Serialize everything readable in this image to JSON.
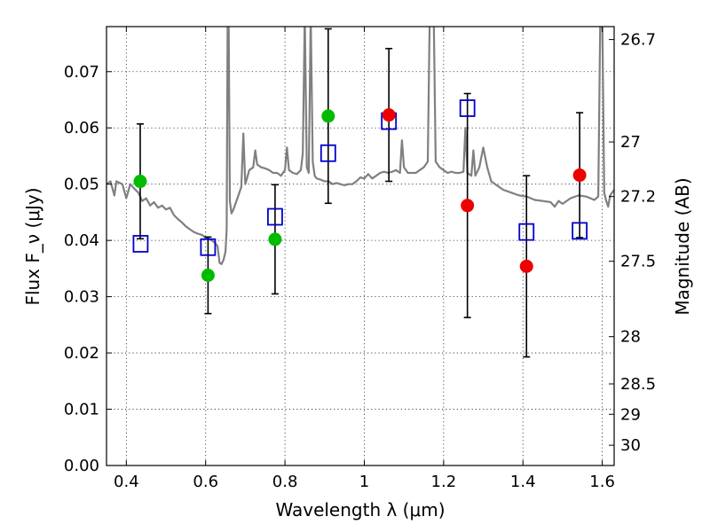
{
  "chart_data": {
    "type": "scatter",
    "xlabel": "Wavelength λ (μm)",
    "ylabel": "Flux F_ν (μJy)",
    "y2label": "Magnitude (AB)",
    "xlim": [
      0.35,
      1.63
    ],
    "ylim": [
      0.0,
      0.078
    ],
    "x_ticks": [
      0.4,
      0.6,
      0.8,
      1.0,
      1.2,
      1.4,
      1.6
    ],
    "x_tick_labels": [
      "0.4",
      "0.6",
      "0.8",
      "1",
      "1.2",
      "1.4",
      "1.6"
    ],
    "y_ticks": [
      0.0,
      0.01,
      0.02,
      0.03,
      0.04,
      0.05,
      0.06,
      0.07
    ],
    "y_tick_labels": [
      "0.00",
      "0.01",
      "0.02",
      "0.03",
      "0.04",
      "0.05",
      "0.06",
      "0.07"
    ],
    "y2_ticks": [
      {
        "label": "26.7",
        "flux": 0.0757
      },
      {
        "label": "27",
        "flux": 0.0575
      },
      {
        "label": "27.2",
        "flux": 0.0478
      },
      {
        "label": "27.5",
        "flux": 0.0363
      },
      {
        "label": "28",
        "flux": 0.0229
      },
      {
        "label": "28.5",
        "flux": 0.0145
      },
      {
        "label": "29",
        "flux": 0.0091
      },
      {
        "label": "30",
        "flux": 0.0036
      }
    ],
    "grid": true,
    "colors": {
      "spectrum": "#808080",
      "green_points": "#00bb00",
      "red_points": "#ee0000",
      "model_squares": "#0000cc",
      "errorbars": "#000000"
    },
    "series": [
      {
        "kind": "measured-green",
        "points": [
          {
            "x": 0.435,
            "y": 0.0505,
            "err": 0.0102
          },
          {
            "x": 0.606,
            "y": 0.0338,
            "err": 0.0068
          },
          {
            "x": 0.775,
            "y": 0.0402,
            "err": 0.0097
          },
          {
            "x": 0.909,
            "y": 0.0621,
            "err": 0.0155
          }
        ]
      },
      {
        "kind": "measured-red",
        "points": [
          {
            "x": 1.062,
            "y": 0.0623,
            "err": 0.0118
          },
          {
            "x": 1.26,
            "y": 0.0462,
            "err": 0.0199
          },
          {
            "x": 1.409,
            "y": 0.0354,
            "err": 0.0161
          },
          {
            "x": 1.543,
            "y": 0.0516,
            "err": 0.0111
          }
        ]
      },
      {
        "kind": "model-squares",
        "points": [
          {
            "x": 0.436,
            "y": 0.0394
          },
          {
            "x": 0.606,
            "y": 0.0388
          },
          {
            "x": 0.775,
            "y": 0.0442
          },
          {
            "x": 0.909,
            "y": 0.0555
          },
          {
            "x": 1.062,
            "y": 0.0612
          },
          {
            "x": 1.26,
            "y": 0.0635
          },
          {
            "x": 1.409,
            "y": 0.0415
          },
          {
            "x": 1.543,
            "y": 0.0417
          }
        ]
      }
    ],
    "spectrum": [
      [
        0.35,
        0.05
      ],
      [
        0.36,
        0.0505
      ],
      [
        0.37,
        0.048
      ],
      [
        0.375,
        0.0505
      ],
      [
        0.39,
        0.05
      ],
      [
        0.4,
        0.0475
      ],
      [
        0.41,
        0.05
      ],
      [
        0.42,
        0.0492
      ],
      [
        0.43,
        0.0485
      ],
      [
        0.44,
        0.047
      ],
      [
        0.45,
        0.0475
      ],
      [
        0.46,
        0.0462
      ],
      [
        0.47,
        0.0468
      ],
      [
        0.48,
        0.0458
      ],
      [
        0.49,
        0.0462
      ],
      [
        0.5,
        0.0455
      ],
      [
        0.51,
        0.0458
      ],
      [
        0.52,
        0.0445
      ],
      [
        0.53,
        0.0438
      ],
      [
        0.54,
        0.0432
      ],
      [
        0.55,
        0.0425
      ],
      [
        0.56,
        0.042
      ],
      [
        0.57,
        0.0415
      ],
      [
        0.58,
        0.0412
      ],
      [
        0.59,
        0.041
      ],
      [
        0.6,
        0.0405
      ],
      [
        0.61,
        0.0402
      ],
      [
        0.62,
        0.0398
      ],
      [
        0.63,
        0.039
      ],
      [
        0.635,
        0.036
      ],
      [
        0.64,
        0.0358
      ],
      [
        0.645,
        0.0365
      ],
      [
        0.65,
        0.038
      ],
      [
        0.653,
        0.042
      ],
      [
        0.6555,
        0.08
      ],
      [
        0.658,
        0.08
      ],
      [
        0.661,
        0.047
      ],
      [
        0.665,
        0.0448
      ],
      [
        0.67,
        0.0455
      ],
      [
        0.68,
        0.0475
      ],
      [
        0.69,
        0.0495
      ],
      [
        0.695,
        0.059
      ],
      [
        0.7,
        0.05
      ],
      [
        0.71,
        0.0525
      ],
      [
        0.72,
        0.053
      ],
      [
        0.725,
        0.056
      ],
      [
        0.73,
        0.0535
      ],
      [
        0.74,
        0.053
      ],
      [
        0.75,
        0.0528
      ],
      [
        0.76,
        0.0525
      ],
      [
        0.77,
        0.052
      ],
      [
        0.78,
        0.052
      ],
      [
        0.79,
        0.0515
      ],
      [
        0.8,
        0.0525
      ],
      [
        0.805,
        0.0565
      ],
      [
        0.81,
        0.0525
      ],
      [
        0.82,
        0.052
      ],
      [
        0.83,
        0.0518
      ],
      [
        0.84,
        0.0525
      ],
      [
        0.845,
        0.0555
      ],
      [
        0.85,
        0.08
      ],
      [
        0.855,
        0.053
      ],
      [
        0.86,
        0.052
      ],
      [
        0.865,
        0.08
      ],
      [
        0.87,
        0.054
      ],
      [
        0.875,
        0.0515
      ],
      [
        0.88,
        0.051
      ],
      [
        0.89,
        0.0508
      ],
      [
        0.9,
        0.0505
      ],
      [
        0.91,
        0.0505
      ],
      [
        0.92,
        0.05
      ],
      [
        0.93,
        0.0502
      ],
      [
        0.94,
        0.05
      ],
      [
        0.95,
        0.0498
      ],
      [
        0.96,
        0.05
      ],
      [
        0.97,
        0.05
      ],
      [
        0.98,
        0.0505
      ],
      [
        0.99,
        0.0512
      ],
      [
        1.0,
        0.051
      ],
      [
        1.01,
        0.0518
      ],
      [
        1.02,
        0.051
      ],
      [
        1.03,
        0.0515
      ],
      [
        1.04,
        0.052
      ],
      [
        1.05,
        0.0522
      ],
      [
        1.06,
        0.052
      ],
      [
        1.07,
        0.0522
      ],
      [
        1.08,
        0.0525
      ],
      [
        1.09,
        0.052
      ],
      [
        1.095,
        0.0578
      ],
      [
        1.1,
        0.053
      ],
      [
        1.11,
        0.052
      ],
      [
        1.12,
        0.052
      ],
      [
        1.13,
        0.052
      ],
      [
        1.14,
        0.0525
      ],
      [
        1.15,
        0.053
      ],
      [
        1.16,
        0.054
      ],
      [
        1.165,
        0.08
      ],
      [
        1.175,
        0.08
      ],
      [
        1.18,
        0.054
      ],
      [
        1.19,
        0.053
      ],
      [
        1.2,
        0.0525
      ],
      [
        1.21,
        0.052
      ],
      [
        1.22,
        0.0522
      ],
      [
        1.23,
        0.052
      ],
      [
        1.24,
        0.052
      ],
      [
        1.25,
        0.0522
      ],
      [
        1.255,
        0.06
      ],
      [
        1.26,
        0.052
      ],
      [
        1.27,
        0.0515
      ],
      [
        1.275,
        0.056
      ],
      [
        1.28,
        0.0515
      ],
      [
        1.29,
        0.053
      ],
      [
        1.3,
        0.0565
      ],
      [
        1.31,
        0.053
      ],
      [
        1.32,
        0.0505
      ],
      [
        1.33,
        0.05
      ],
      [
        1.35,
        0.049
      ],
      [
        1.37,
        0.0485
      ],
      [
        1.39,
        0.048
      ],
      [
        1.41,
        0.0478
      ],
      [
        1.43,
        0.0472
      ],
      [
        1.45,
        0.047
      ],
      [
        1.47,
        0.0468
      ],
      [
        1.48,
        0.046
      ],
      [
        1.49,
        0.047
      ],
      [
        1.5,
        0.0465
      ],
      [
        1.52,
        0.0475
      ],
      [
        1.54,
        0.048
      ],
      [
        1.56,
        0.0478
      ],
      [
        1.58,
        0.0472
      ],
      [
        1.59,
        0.0478
      ],
      [
        1.595,
        0.08
      ],
      [
        1.6,
        0.08
      ],
      [
        1.605,
        0.0485
      ],
      [
        1.61,
        0.047
      ],
      [
        1.615,
        0.046
      ],
      [
        1.62,
        0.048
      ],
      [
        1.63,
        0.049
      ]
    ]
  }
}
